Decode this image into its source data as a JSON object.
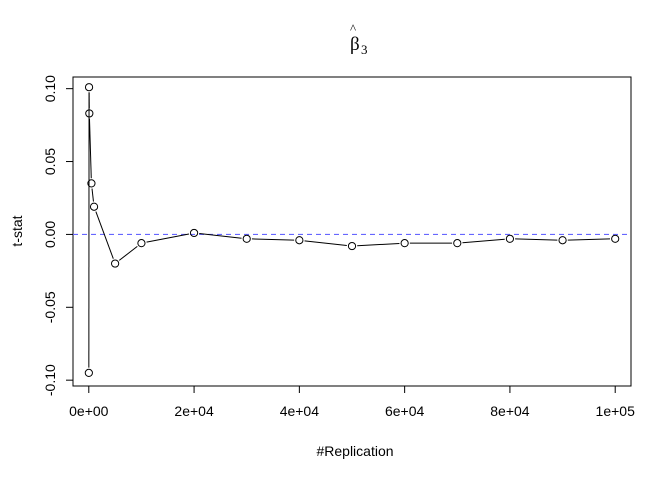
{
  "chart_data": {
    "type": "line",
    "title": "β̂₃",
    "title_base": "β",
    "title_hat": "^",
    "title_subscript": "3",
    "xlabel": "#Replication",
    "ylabel": "t-stat",
    "xlim": [
      -3000,
      103000
    ],
    "ylim": [
      -0.104,
      0.108
    ],
    "xticks": [
      {
        "value": 0,
        "label": "0e+00"
      },
      {
        "value": 20000,
        "label": "2e+04"
      },
      {
        "value": 40000,
        "label": "4e+04"
      },
      {
        "value": 60000,
        "label": "6e+04"
      },
      {
        "value": 80000,
        "label": "8e+04"
      },
      {
        "value": 100000,
        "label": "1e+05"
      }
    ],
    "yticks": [
      {
        "value": -0.1,
        "label": "-0.10"
      },
      {
        "value": -0.05,
        "label": "-0.05"
      },
      {
        "value": 0.0,
        "label": "0.00"
      },
      {
        "value": 0.05,
        "label": "0.05"
      },
      {
        "value": 0.1,
        "label": "0.10"
      }
    ],
    "reference_line": {
      "y": 0,
      "color": "#6666ff",
      "style": "dashed"
    },
    "series": [
      {
        "name": "t-stat",
        "color": "#000000",
        "marker": "open-circle",
        "x": [
          10,
          50,
          100,
          500,
          1000,
          5000,
          10000,
          20000,
          30000,
          40000,
          50000,
          60000,
          70000,
          80000,
          90000,
          100000
        ],
        "y": [
          -0.095,
          0.101,
          0.083,
          0.035,
          0.019,
          -0.02,
          -0.006,
          0.001,
          -0.003,
          -0.004,
          -0.008,
          -0.006,
          -0.006,
          -0.003,
          -0.004,
          -0.003
        ]
      }
    ]
  }
}
